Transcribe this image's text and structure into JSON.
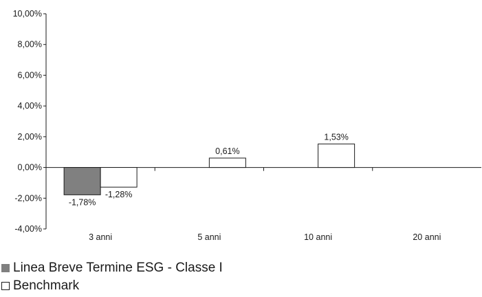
{
  "chart_data": {
    "type": "bar",
    "categories": [
      "3 anni",
      "5 anni",
      "10 anni",
      "20 anni"
    ],
    "series": [
      {
        "name": "Linea Breve Termine ESG - Classe I",
        "values": [
          -1.78,
          null,
          null,
          null
        ],
        "color": "#808080"
      },
      {
        "name": "Benchmark",
        "values": [
          -1.28,
          0.61,
          1.53,
          null
        ],
        "color": "#ffffff"
      }
    ],
    "value_labels": [
      [
        "-1,78%",
        null,
        null,
        null
      ],
      [
        "-1,28%",
        "0,61%",
        "1,53%",
        null
      ]
    ],
    "ylim": [
      -4,
      10
    ],
    "yticks": [
      -4,
      -2,
      0,
      2,
      4,
      6,
      8,
      10
    ],
    "ytick_labels": [
      "-4,00%",
      "-2,00%",
      "0,00%",
      "2,00%",
      "4,00%",
      "6,00%",
      "8,00%",
      "10,00%"
    ],
    "grid": false,
    "legend_position": "bottom-left"
  }
}
